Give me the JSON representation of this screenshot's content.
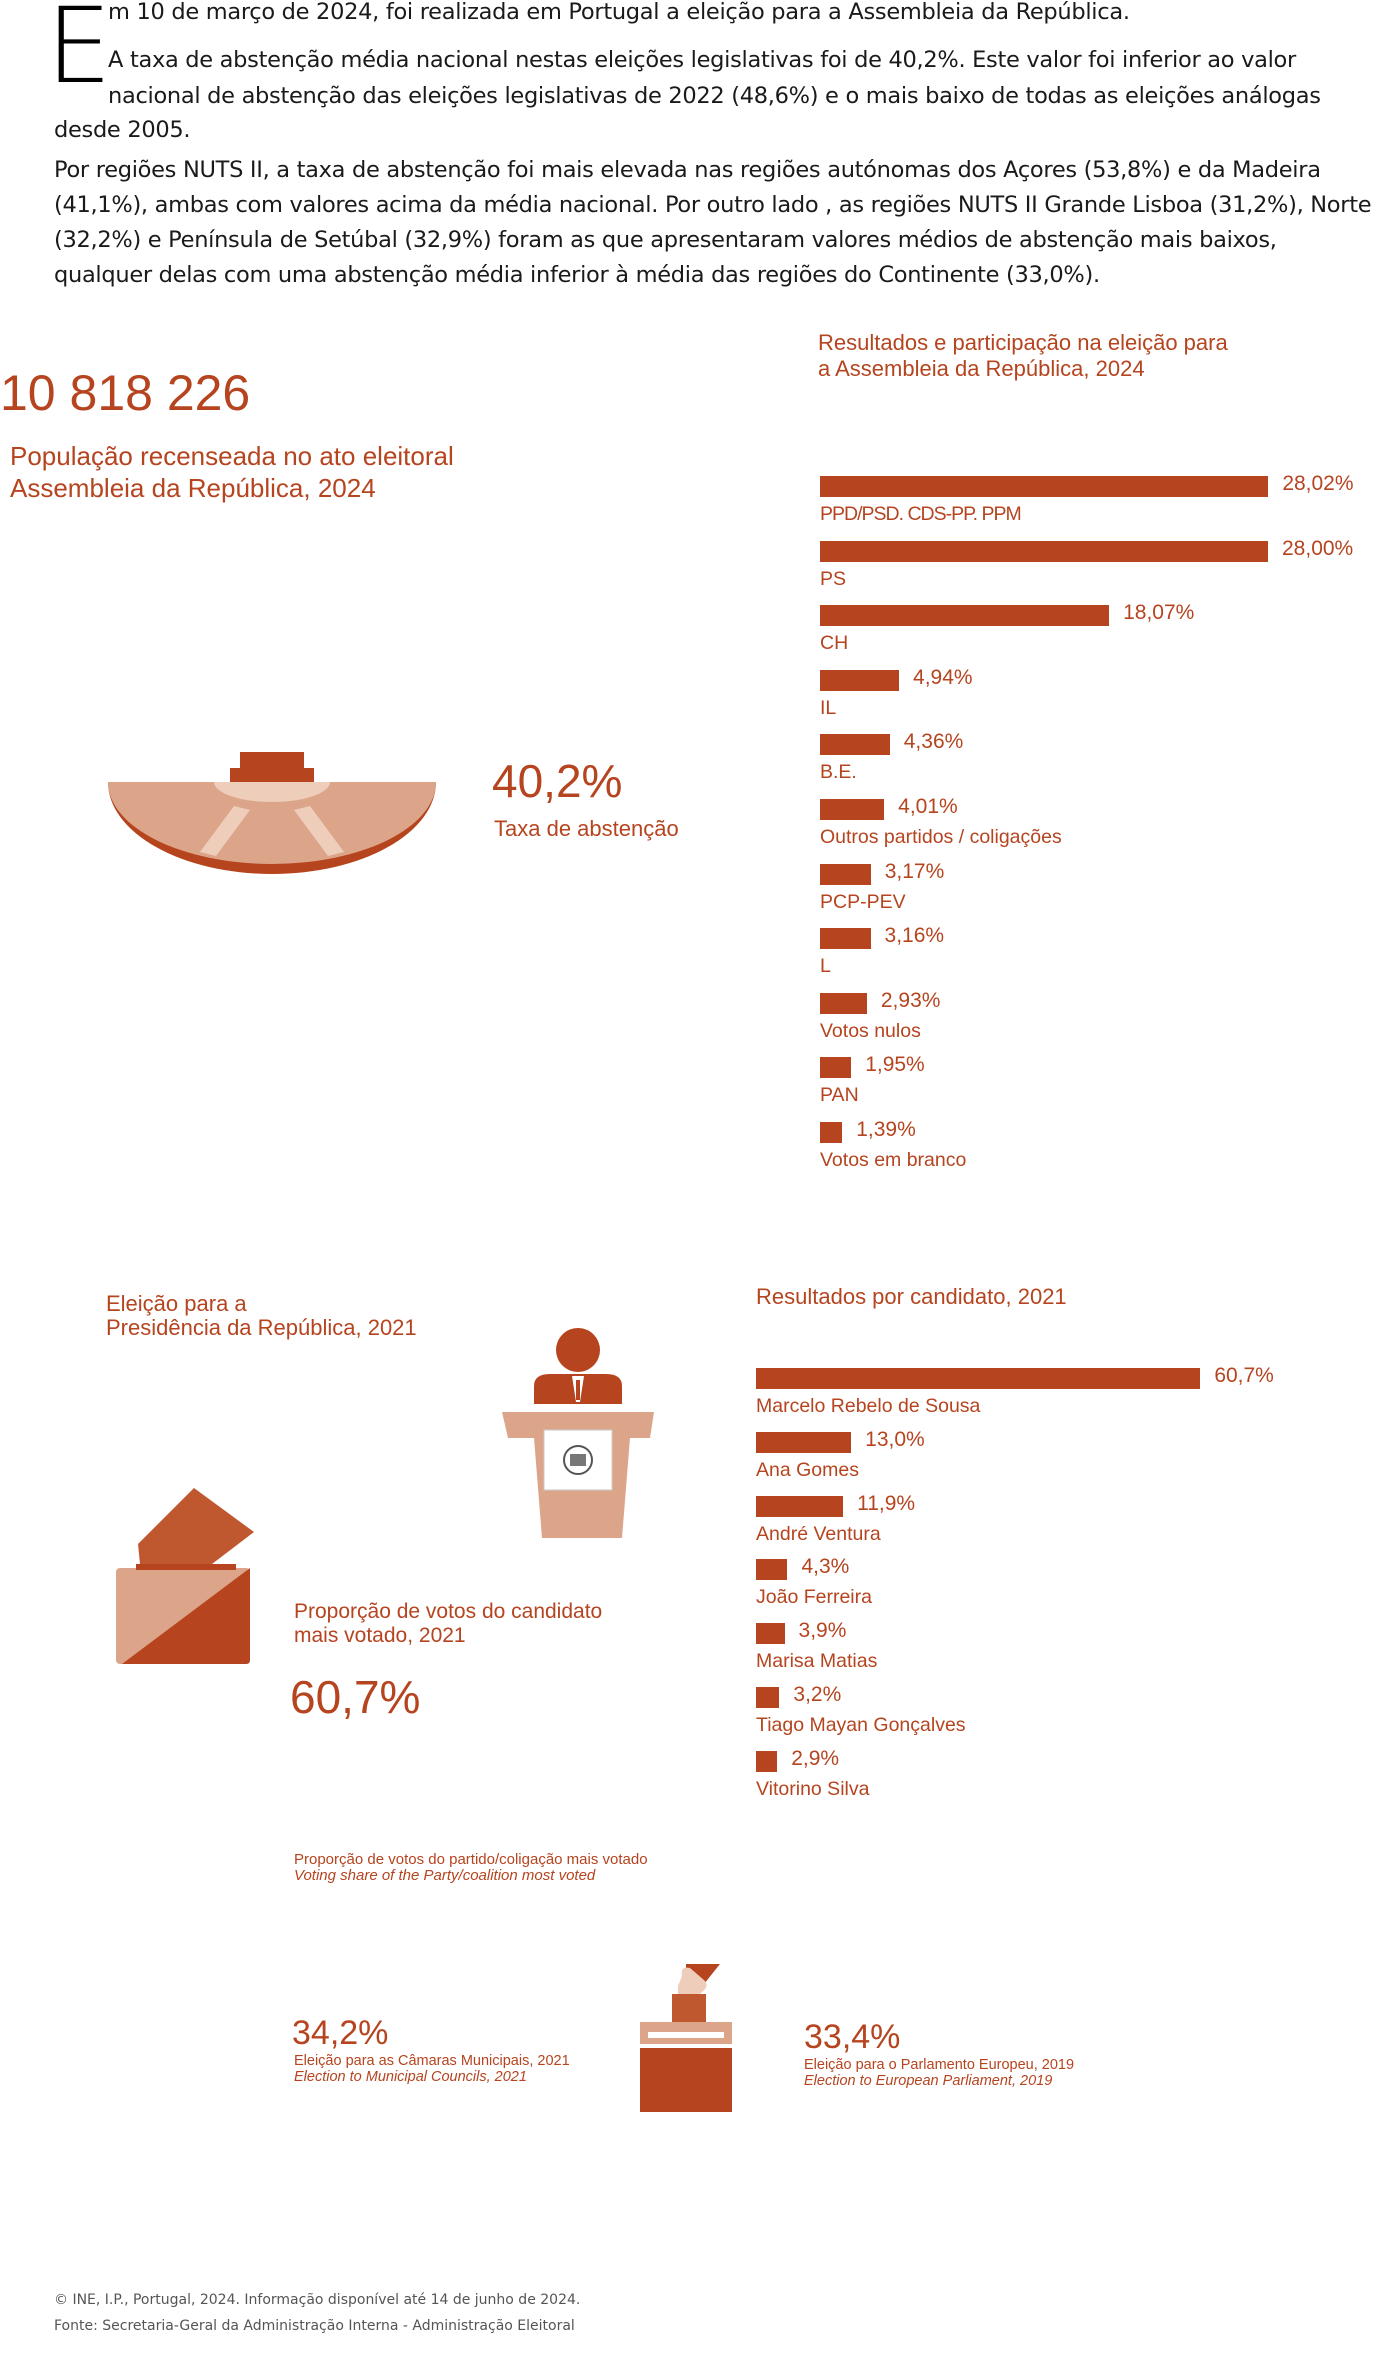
{
  "intro": {
    "dropcap": "E",
    "p1_line1": "m 10 de março de 2024, foi realizada em Portugal a eleição para a Assembleia da República.",
    "p2_line1": "A taxa de abstenção média nacional nestas eleições legislativas foi de 40,2%. Este valor foi inferior ao valor",
    "p2_line2": "nacional de abstenção das eleições legislativas de 2022 (48,6%) e o mais baixo de todas as eleições análogas",
    "p2_line3": "desde 2005.",
    "p3_line1": "Por regiões NUTS II, a taxa de abstenção foi mais elevada nas regiões autónomas dos Açores (53,8%) e da Madeira",
    "p3_line2": "(41,1%), ambas com valores acima da média nacional. Por outro lado , as regiões NUTS II Grande Lisboa (31,2%), Norte",
    "p3_line3": "(32,2%) e Península de Setúbal (32,9%) foram as que apresentaram valores médios de abstenção mais baixos,",
    "p3_line4": "qualquer delas com uma abstenção média inferior à média das regiões do Continente (33,0%)."
  },
  "population": {
    "value": "10 818 226",
    "label_line1": "População recenseada no ato eleitoral",
    "label_line2": "Assembleia da República, 2024"
  },
  "abstention": {
    "value": "40,2%",
    "label": "Taxa de abstenção"
  },
  "colors": {
    "accent": "#b5441f",
    "light": "#dca58a",
    "pale": "#efcdbb"
  },
  "chart_data": [
    {
      "type": "bar",
      "title_line1": "Resultados e participação na eleição para",
      "title_line2": "a Assembleia da República, 2024",
      "categories": [
        "PPD/PSD. CDS-PP. PPM",
        "PS",
        "CH",
        "IL",
        "B.E.",
        "Outros partidos / coligações",
        "PCP-PEV",
        "L",
        "Votos nulos",
        "PAN",
        "Votos em branco"
      ],
      "values": [
        28.02,
        28.0,
        18.07,
        4.94,
        4.36,
        4.01,
        3.17,
        3.16,
        2.93,
        1.95,
        1.39
      ],
      "value_labels": [
        "28,02%",
        "28,00%",
        "18,07%",
        "4,94%",
        "4,36%",
        "4,01%",
        "3,17%",
        "3,16%",
        "2,93%",
        "1,95%",
        "1,39%"
      ]
    },
    {
      "type": "bar",
      "title": "Resultados por candidato, 2021",
      "categories": [
        "Marcelo Rebelo de Sousa",
        "Ana Gomes",
        "André Ventura",
        "João Ferreira",
        "Marisa Matias",
        "Tiago Mayan Gonçalves",
        "Vitorino Silva"
      ],
      "values": [
        60.7,
        13.0,
        11.9,
        4.3,
        3.9,
        3.2,
        2.9
      ],
      "value_labels": [
        "60,7%",
        "13,0%",
        "11,9%",
        "4,3%",
        "3,9%",
        "3,2%",
        "2,9%"
      ]
    }
  ],
  "presidential": {
    "title_line1": "Eleição para a",
    "title_line2": "Presidência da República, 2021",
    "share_label_line1": "Proporção de votos do candidato",
    "share_label_line2": "mais votado, 2021",
    "share_value": "60,7%"
  },
  "party_share": {
    "title": "Proporção de votos do partido/coligação mais votado",
    "title_en": "Voting share of the Party/coalition most voted",
    "left_value": "34,2%",
    "left_label": "Eleição para as Câmaras Municipais, 2021",
    "left_label_en": "Election to Municipal Councils, 2021",
    "right_value": "33,4%",
    "right_label": "Eleição para o Parlamento Europeu, 2019",
    "right_label_en": "Election to European Parliament, 2019"
  },
  "footer": {
    "line1": "© INE, I.P., Portugal, 2024. Informação disponível até 14 de junho de 2024.",
    "line2": "Fonte: Secretaria-Geral da Administração Interna - Administração Eleitoral"
  }
}
